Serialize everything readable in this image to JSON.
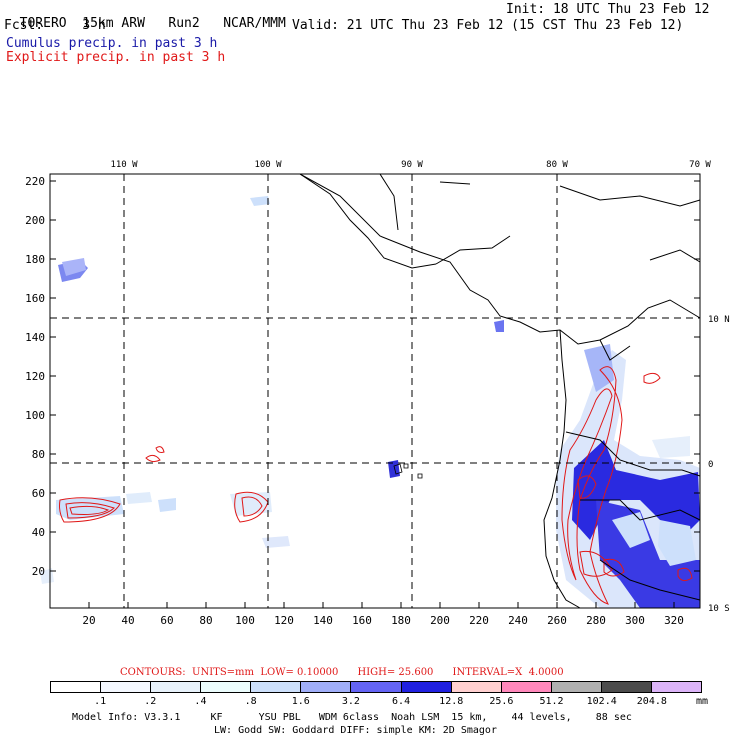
{
  "header": {
    "model": "TORERO",
    "resolution": "15km ARW",
    "run": "Run2",
    "source": "NCAR/MMM",
    "init": "Init: 18 UTC Thu 23 Feb 12",
    "fcst_label": "Fcst:",
    "fcst_value": "3 h",
    "valid": "Valid: 21 UTC Thu 23 Feb 12 (15 CST Thu 23 Feb 12)"
  },
  "legend": {
    "cumulus": "Cumulus precip. in past 3 h",
    "explicit": "Explicit precip. in past 3 h"
  },
  "top_lon_labels": [
    "110 W",
    "100 W",
    "90 W",
    "80 W",
    "70 W"
  ],
  "right_lat_labels": [
    "10 N",
    "0",
    "10 S"
  ],
  "y_ticks": [
    "220",
    "200",
    "180",
    "160",
    "140",
    "120",
    "100",
    "80",
    "60",
    "40",
    "20"
  ],
  "x_ticks": [
    "20",
    "40",
    "60",
    "80",
    "100",
    "120",
    "140",
    "160",
    "180",
    "200",
    "220",
    "240",
    "260",
    "280",
    "300",
    "320"
  ],
  "contour_info": {
    "label": "CONTOURS:",
    "units": "UNITS=mm",
    "low": "LOW= 0.10000",
    "high": "HIGH= 25.600",
    "interval": "INTERVAL=X  4.0000"
  },
  "colorbar": {
    "labels": [
      ".1",
      ".2",
      ".4",
      ".8",
      "1.6",
      "3.2",
      "6.4",
      "12.8",
      "25.6",
      "51.2",
      "102.4",
      "204.8"
    ],
    "units": "mm",
    "colors": [
      "#ffffff",
      "#f4f8ff",
      "#e8f2fb",
      "#ecfdfd",
      "#cde0fb",
      "#a0aef8",
      "#6464f4",
      "#2020e0",
      "#ffd0d0",
      "#ff88bb",
      "#b0b0b0",
      "#4c4c4c",
      "#dcb4f8"
    ]
  },
  "model_info": {
    "line1": "Model Info: V3.3.1     KF      YSU PBL   WDM 6class  Noah LSM  15 km,    44 levels,    88 sec",
    "line2": "LW: Godd SW: Goddard DIFF: simple KM: 2D Smagor"
  }
}
